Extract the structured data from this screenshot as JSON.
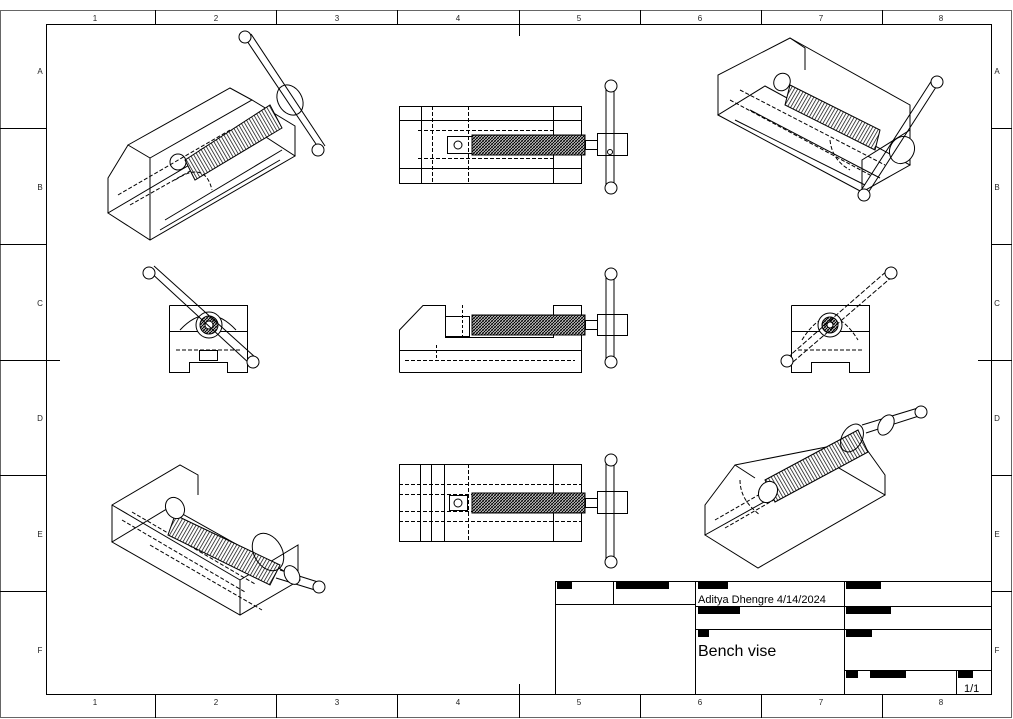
{
  "sheet": {
    "column_labels": [
      "1",
      "2",
      "3",
      "4",
      "5",
      "6",
      "7",
      "8"
    ],
    "row_labels": [
      "A",
      "B",
      "C",
      "D",
      "E",
      "F"
    ]
  },
  "title_block": {
    "author_date": "Aditya Dhengre   4/14/2024",
    "title": "Bench vise",
    "sheet_number": "1/1"
  }
}
